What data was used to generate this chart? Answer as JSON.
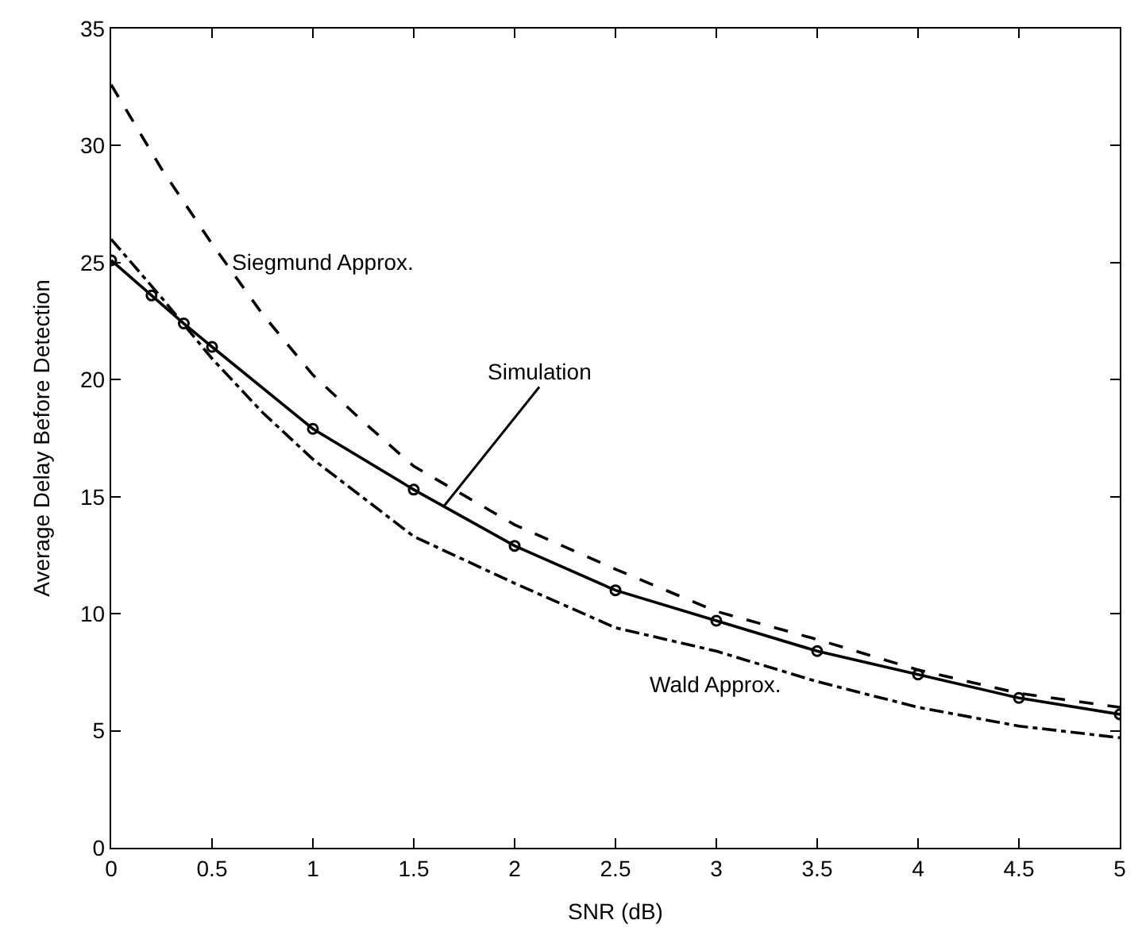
{
  "chart_data": {
    "type": "line",
    "xlabel": "SNR (dB)",
    "ylabel": "Average Delay Before Detection",
    "xlim": [
      0,
      5
    ],
    "ylim": [
      0,
      35
    ],
    "xticks": [
      0,
      0.5,
      1,
      1.5,
      2,
      2.5,
      3,
      3.5,
      4,
      4.5,
      5
    ],
    "yticks": [
      0,
      5,
      10,
      15,
      20,
      25,
      30,
      35
    ],
    "series": [
      {
        "color": "#000000",
        "line_style": "solid",
        "marker": "circle",
        "x": [
          0,
          0.2,
          0.36,
          0.5,
          1,
          1.5,
          2,
          2.5,
          3,
          3.5,
          4,
          4.5,
          5
        ],
        "values": [
          25.1,
          23.6,
          22.4,
          21.4,
          17.9,
          15.3,
          12.9,
          11.0,
          9.7,
          8.4,
          7.4,
          6.4,
          5.7
        ]
      },
      {
        "color": "#000000",
        "line_style": "dashed",
        "marker": "none",
        "x": [
          0,
          0.25,
          0.5,
          0.75,
          1,
          1.25,
          1.5,
          2,
          2.5,
          3,
          3.5,
          4,
          4.5,
          5
        ],
        "values": [
          32.6,
          29.0,
          25.8,
          22.8,
          20.2,
          18.2,
          16.3,
          13.8,
          11.9,
          10.1,
          8.9,
          7.6,
          6.6,
          6.0
        ]
      },
      {
        "color": "#000000",
        "line_style": "dashdot",
        "marker": "none",
        "x": [
          0,
          0.25,
          0.5,
          0.75,
          1,
          1.5,
          2,
          2.5,
          3,
          3.5,
          4,
          4.5,
          5
        ],
        "values": [
          26.0,
          23.5,
          20.9,
          18.6,
          16.6,
          13.3,
          11.3,
          9.4,
          8.4,
          7.1,
          6.0,
          5.2,
          4.7
        ]
      }
    ],
    "annotations": [
      {
        "text": "Siegmund Approx.",
        "x": 0.58,
        "y": 25
      },
      {
        "text": "Simulation",
        "x": 1.65,
        "y": 14.6
      },
      "Wald Approx."
    ]
  }
}
